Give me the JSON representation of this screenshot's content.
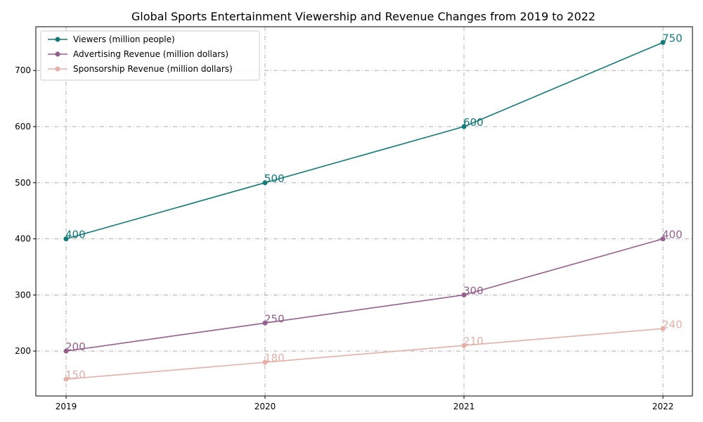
{
  "chart_data": {
    "type": "line",
    "title": "Global Sports Entertainment Viewership and Revenue Changes from 2019 to 2022",
    "xlabel": "",
    "ylabel": "",
    "categories": [
      "2019",
      "2020",
      "2021",
      "2022"
    ],
    "ylim": [
      120,
      778
    ],
    "yticks": [
      200,
      300,
      400,
      500,
      600,
      700
    ],
    "grid": true,
    "legend_position": "top-left",
    "series": [
      {
        "name": "Viewers (million people)",
        "color": "#137a7a",
        "values": [
          400,
          500,
          600,
          750
        ]
      },
      {
        "name": "Advertising Revenue (million dollars)",
        "color": "#955f8e",
        "values": [
          200,
          250,
          300,
          400
        ]
      },
      {
        "name": "Sponsorship Revenue (million dollars)",
        "color": "#e4b0a8",
        "values": [
          150,
          180,
          210,
          240
        ]
      }
    ]
  }
}
